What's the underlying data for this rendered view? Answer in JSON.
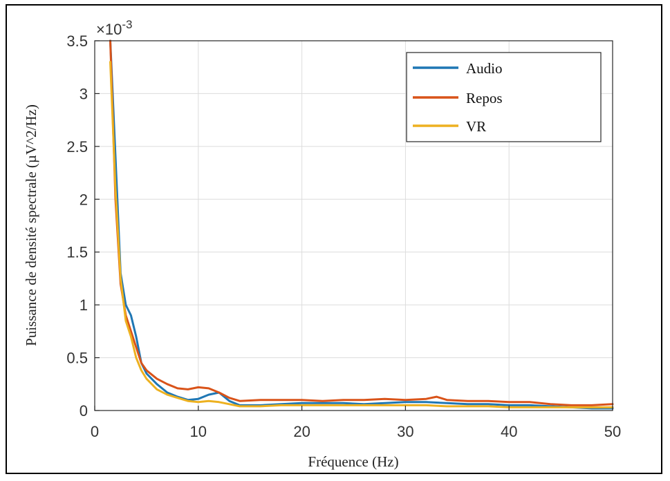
{
  "chart_data": {
    "type": "line",
    "title": "",
    "xlabel": "Fréquence (Hz)",
    "ylabel": "Puissance de densité spectrale (µV^2/Hz)",
    "y_multiplier_label": "×10",
    "y_multiplier_exponent": "-3",
    "xlim": [
      0,
      50
    ],
    "ylim": [
      0,
      3.5
    ],
    "x_ticks": [
      0,
      10,
      20,
      30,
      40,
      50
    ],
    "x_tick_labels": [
      "0",
      "10",
      "20",
      "30",
      "40",
      "50"
    ],
    "y_ticks": [
      0,
      0.5,
      1,
      1.5,
      2,
      2.5,
      3,
      3.5
    ],
    "y_tick_labels": [
      "0",
      "0.5",
      "1",
      "1.5",
      "2",
      "2.5",
      "3",
      "3.5"
    ],
    "grid": true,
    "legend_position": "top-right",
    "series": [
      {
        "name": "Audio",
        "color": "#1f77b4",
        "x": [
          1.5,
          2,
          2.5,
          3,
          3.5,
          4,
          4.5,
          5,
          6,
          7,
          8,
          9,
          10,
          11,
          12,
          13,
          14,
          16,
          18,
          20,
          22,
          24,
          26,
          28,
          30,
          32,
          34,
          36,
          38,
          40,
          42,
          44,
          46,
          48,
          50
        ],
        "y": [
          3.5,
          2.4,
          1.3,
          1.0,
          0.9,
          0.7,
          0.45,
          0.35,
          0.25,
          0.17,
          0.13,
          0.1,
          0.11,
          0.15,
          0.17,
          0.09,
          0.05,
          0.05,
          0.06,
          0.07,
          0.07,
          0.07,
          0.06,
          0.07,
          0.08,
          0.08,
          0.07,
          0.06,
          0.06,
          0.05,
          0.05,
          0.04,
          0.03,
          0.02,
          0.02
        ]
      },
      {
        "name": "Repos",
        "color": "#d95319",
        "x": [
          1.5,
          2,
          2.5,
          3,
          3.5,
          4,
          4.5,
          5,
          6,
          7,
          8,
          9,
          10,
          11,
          12,
          13,
          14,
          16,
          18,
          20,
          22,
          24,
          26,
          28,
          30,
          32,
          33,
          34,
          36,
          38,
          40,
          42,
          44,
          46,
          48,
          50
        ],
        "y": [
          3.5,
          2.0,
          1.2,
          0.9,
          0.75,
          0.6,
          0.45,
          0.38,
          0.3,
          0.25,
          0.21,
          0.2,
          0.22,
          0.21,
          0.17,
          0.12,
          0.09,
          0.1,
          0.1,
          0.1,
          0.09,
          0.1,
          0.1,
          0.11,
          0.1,
          0.11,
          0.13,
          0.1,
          0.09,
          0.09,
          0.08,
          0.08,
          0.06,
          0.05,
          0.05,
          0.06
        ]
      },
      {
        "name": "VR",
        "color": "#edb120",
        "x": [
          1.5,
          2,
          2.5,
          3,
          3.5,
          4,
          4.5,
          5,
          6,
          7,
          8,
          9,
          10,
          11,
          12,
          13,
          14,
          16,
          18,
          20,
          22,
          24,
          26,
          28,
          30,
          32,
          34,
          36,
          38,
          40,
          42,
          44,
          46,
          48,
          50
        ],
        "y": [
          3.3,
          2.1,
          1.25,
          0.85,
          0.7,
          0.5,
          0.38,
          0.3,
          0.2,
          0.15,
          0.12,
          0.09,
          0.08,
          0.09,
          0.08,
          0.06,
          0.04,
          0.04,
          0.05,
          0.05,
          0.05,
          0.05,
          0.05,
          0.05,
          0.05,
          0.05,
          0.04,
          0.04,
          0.04,
          0.03,
          0.03,
          0.03,
          0.03,
          0.03,
          0.03
        ]
      }
    ]
  }
}
